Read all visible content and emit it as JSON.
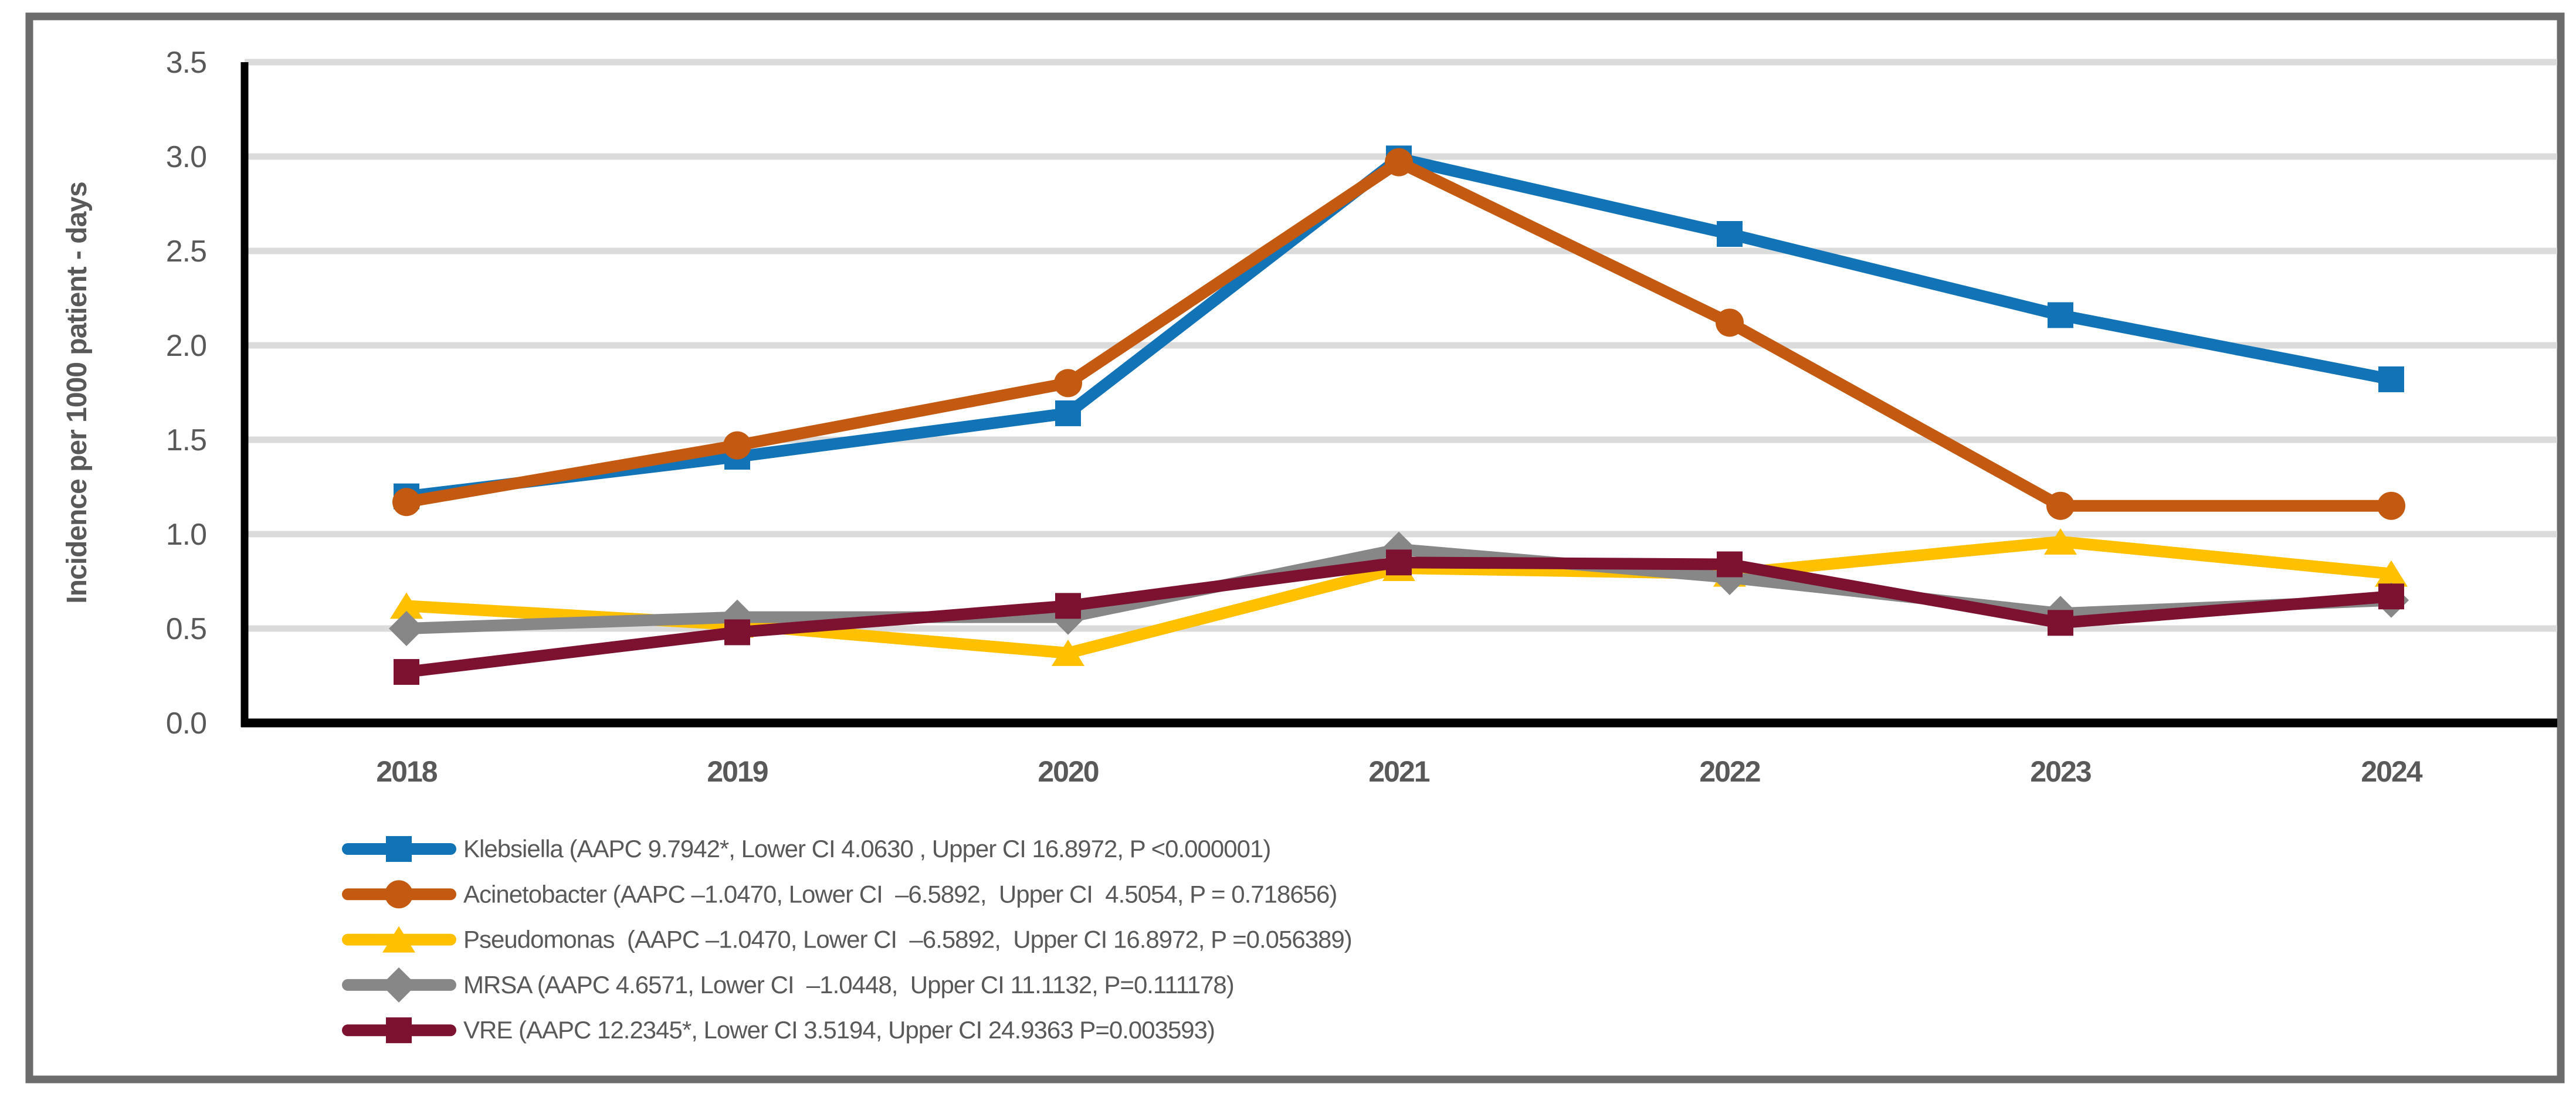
{
  "figure": {
    "background_color": "#FFFFFF",
    "border_color": "#6C6C6C",
    "axis_line_color": "#000000",
    "gridline_color": "#DBDBDB",
    "axis_text_color": "#595959"
  },
  "chart_data": {
    "type": "line",
    "title": "",
    "xlabel": "",
    "ylabel": "Incidence per 1000 patient - days",
    "categories": [
      "2018",
      "2019",
      "2020",
      "2021",
      "2022",
      "2023",
      "2024"
    ],
    "ylim": [
      0.0,
      3.5
    ],
    "ytick_step": 0.5,
    "ytick_labels": [
      "0.0",
      "0.5",
      "1.0",
      "1.5",
      "2.0",
      "2.5",
      "3.0",
      "3.5"
    ],
    "grid": true,
    "legend_position": "bottom-left",
    "series": [
      {
        "name": "Klebsiella",
        "legend_label": "Klebsiella (AAPC 9.7942*, Lower CI 4.0630 , Upper CI 16.8972, P <0.000001)",
        "color": "#1273B7",
        "marker": "square",
        "values": [
          1.2,
          1.41,
          1.64,
          2.99,
          2.59,
          2.16,
          1.82
        ]
      },
      {
        "name": "Acinetobacter",
        "legend_label": "Acinetobacter (AAPC –1.0470, Lower CI  –6.5892,  Upper CI  4.5054, P = 0.718656)",
        "color": "#C45A11",
        "marker": "circle",
        "values": [
          1.17,
          1.47,
          1.8,
          2.97,
          2.12,
          1.15,
          1.15
        ]
      },
      {
        "name": "Pseudomonas",
        "legend_label": "Pseudomonas  (AAPC –1.0470, Lower CI  –6.5892,  Upper CI 16.8972, P =0.056389)",
        "color": "#FFC000",
        "marker": "triangle",
        "values": [
          0.62,
          0.52,
          0.37,
          0.82,
          0.79,
          0.96,
          0.79
        ]
      },
      {
        "name": "MRSA",
        "legend_label": "MRSA (AAPC 4.6571, Lower CI  –1.0448,  Upper CI 11.1132, P=0.111178)",
        "color": "#878787",
        "marker": "diamond",
        "values": [
          0.5,
          0.56,
          0.56,
          0.92,
          0.77,
          0.58,
          0.65
        ]
      },
      {
        "name": "VRE",
        "legend_label": "VRE (AAPC 12.2345*, Lower CI 3.5194, Upper CI 24.9363 P=0.003593)",
        "color": "#7C1230",
        "marker": "square",
        "values": [
          0.27,
          0.48,
          0.62,
          0.85,
          0.84,
          0.53,
          0.67
        ]
      }
    ]
  }
}
